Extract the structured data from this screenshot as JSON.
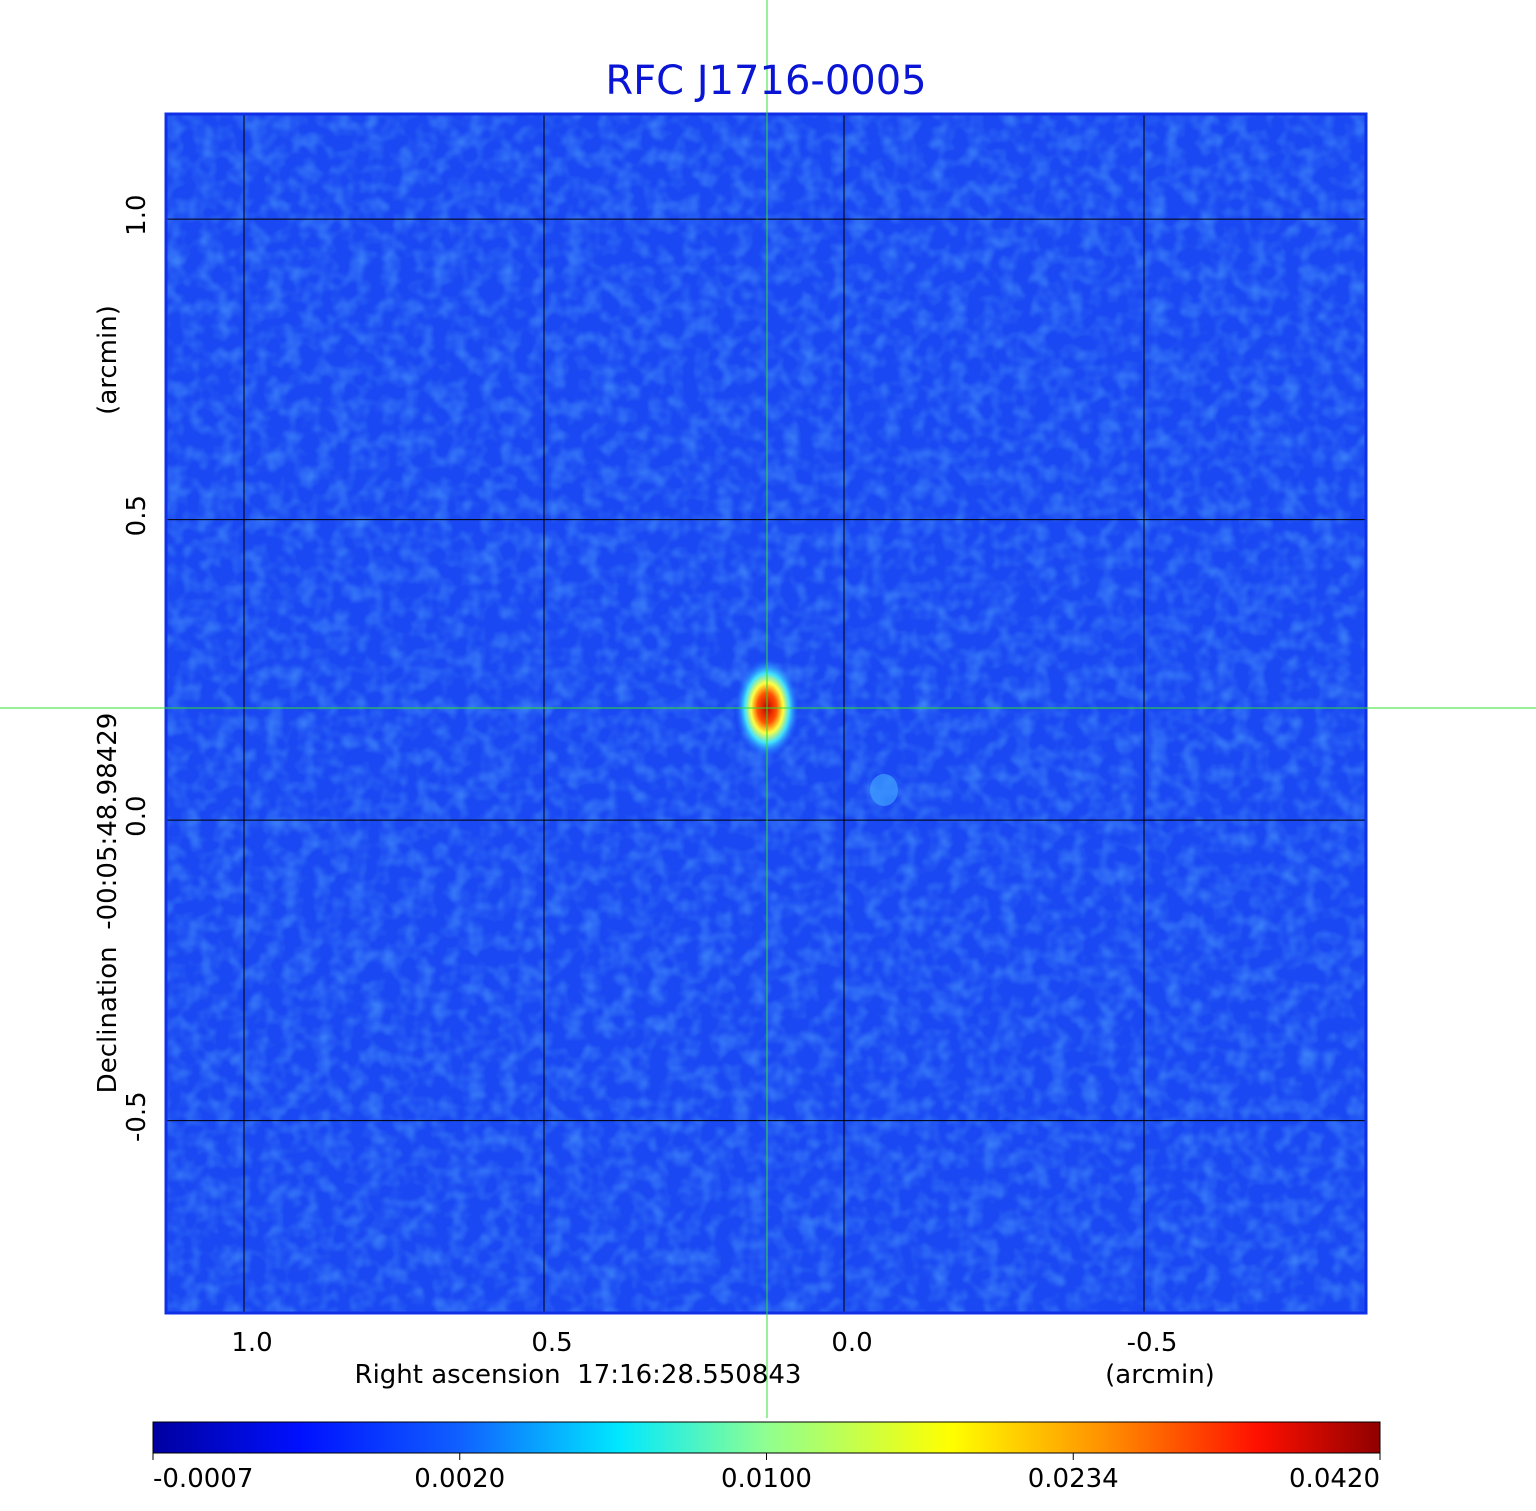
{
  "chart_data": {
    "type": "image",
    "title": "RFC J1716-0005",
    "x_label": "Right ascension  17:16:28.550843",
    "x_unit": "(arcmin)",
    "y_label": "Declination  -00:05:48.98429",
    "y_unit": "(arcmin)",
    "xlim": [
      1.13,
      -0.87
    ],
    "ylim": [
      -0.82,
      1.175
    ],
    "xticks": [
      {
        "value": 1.0,
        "label": "1.0"
      },
      0.5,
      {
        "value": 0.0,
        "label": "0.0"
      },
      -0.5
    ],
    "yticks": [
      {
        "value": 1.0,
        "label": "1.0"
      },
      0.5,
      {
        "value": 0.0,
        "label": "0.0"
      },
      -0.5
    ],
    "grid": true,
    "colorbar_ticks": [
      -0.0007,
      {
        "value": 0.002,
        "label": "0.0020"
      },
      {
        "value": 0.01,
        "label": "0.0100"
      },
      0.0234,
      {
        "value": 0.042,
        "label": "0.0420"
      }
    ]
  }
}
